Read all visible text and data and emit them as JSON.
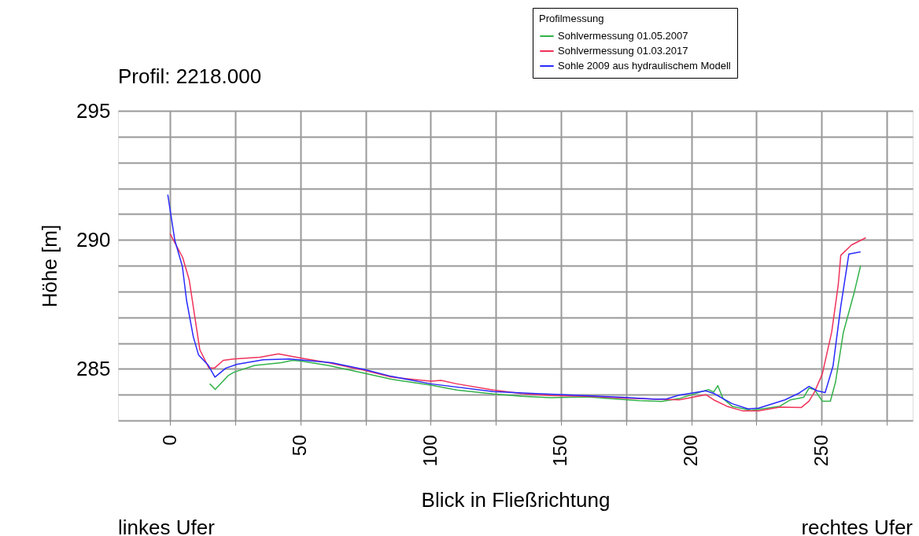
{
  "chart_data": {
    "type": "line",
    "title": "Profil:    2218.000",
    "xlabel": "Blick in Fließrichtung",
    "ylabel": "Höhe [m]",
    "legend_title": "Profilmessung",
    "legend": "top right",
    "grid": true,
    "line_style": "solid",
    "marker": "none",
    "annotations": [
      "linkes Ufer",
      "rechtes Ufer"
    ],
    "xlim": [
      -20,
      285
    ],
    "ylim": [
      283,
      295
    ],
    "xticks": [
      0,
      {
        "value": 25,
        "label": null
      },
      50,
      {
        "value": 75,
        "label": null
      },
      100,
      {
        "value": 125,
        "label": null
      },
      150,
      {
        "value": 175,
        "label": null
      },
      200,
      {
        "value": 225,
        "label": null
      },
      250,
      {
        "value": 275,
        "label": null
      }
    ],
    "yticks": [
      {
        "value": 283,
        "label": null
      },
      {
        "value": 284,
        "label": null
      },
      285,
      {
        "value": 286,
        "label": null
      },
      {
        "value": 287,
        "label": null
      },
      {
        "value": 288,
        "label": null
      },
      {
        "value": 289,
        "label": null
      },
      290,
      {
        "value": 291,
        "label": null
      },
      {
        "value": 292,
        "label": null
      },
      {
        "value": 293,
        "label": null
      },
      {
        "value": 294,
        "label": null
      },
      295
    ],
    "series": [
      {
        "name": "Sohlvermessung 01.05.2007",
        "color": "#33b24a",
        "x": [
          15.2,
          17.3,
          22.4,
          24.5,
          32.4,
          42.6,
          47,
          50.5,
          60.7,
          74.7,
          84.9,
          89.8,
          100,
          110,
          124,
          135,
          146,
          160,
          180,
          188.6,
          195.4,
          206.6,
          208.6,
          210.2,
          212.2,
          215.7,
          222.9,
          234,
          238.1,
          243.2,
          245.2,
          247.3,
          250.3,
          253.4,
          255.4,
          258.4,
          262.5,
          265
        ],
        "values": [
          284.42,
          284.2,
          284.75,
          284.87,
          285.13,
          285.24,
          285.33,
          285.3,
          285.13,
          284.83,
          284.6,
          284.52,
          284.37,
          284.18,
          284.03,
          283.94,
          283.88,
          283.91,
          283.77,
          283.74,
          283.85,
          284.2,
          284.1,
          284.35,
          283.85,
          283.55,
          283.39,
          283.55,
          283.8,
          283.9,
          284.25,
          284.2,
          283.75,
          283.75,
          284.5,
          286.42,
          287.94,
          289.0
        ]
      },
      {
        "name": "Sohlvermessung 01.03.2017",
        "color": "#f0325a",
        "x": [
          0,
          4.8,
          7.3,
          9.4,
          11.4,
          14.9,
          17,
          20.4,
          24.5,
          34.5,
          41.6,
          49.6,
          60.7,
          74.7,
          84.9,
          100,
          104,
          110,
          124,
          135,
          146,
          160,
          173.5,
          188.6,
          195.4,
          205.6,
          208.6,
          213.7,
          219.8,
          225.9,
          234,
          242.2,
          245.2,
          247.3,
          250.3,
          253.9,
          256.4,
          257.4,
          261.5,
          267
        ],
        "values": [
          290.23,
          289.32,
          288.46,
          287.06,
          285.74,
          285.03,
          285.03,
          285.33,
          285.38,
          285.45,
          285.58,
          285.43,
          285.24,
          284.94,
          284.68,
          284.52,
          284.55,
          284.42,
          284.18,
          284.04,
          283.97,
          283.94,
          283.87,
          283.82,
          283.8,
          284.0,
          283.8,
          283.55,
          283.37,
          283.37,
          283.52,
          283.5,
          283.75,
          284.1,
          284.8,
          286.42,
          288.24,
          289.4,
          289.8,
          290.08
        ]
      },
      {
        "name": "Sohle 2009 aus hydraulischem Modell",
        "color": "#2a2aff",
        "x": [
          -0.9,
          1.8,
          4.7,
          6.3,
          8.9,
          10.9,
          14.7,
          17.2,
          21.4,
          25.7,
          35.8,
          45.8,
          51.9,
          62,
          74.7,
          84.9,
          100,
          124,
          140.3,
          160,
          173.5,
          186.6,
          190.6,
          195.4,
          205.6,
          208.6,
          215.7,
          221.8,
          225.9,
          236,
          241.2,
          245.2,
          248.3,
          251.4,
          254.4,
          257.4,
          260.5,
          265
        ],
        "values": [
          291.75,
          289.98,
          288.97,
          287.66,
          286.24,
          285.54,
          285.13,
          284.68,
          285.03,
          285.18,
          285.35,
          285.38,
          285.33,
          285.24,
          284.97,
          284.71,
          284.42,
          284.12,
          284.04,
          283.96,
          283.9,
          283.82,
          283.84,
          283.98,
          284.15,
          284.05,
          283.65,
          283.45,
          283.48,
          283.8,
          284.05,
          284.32,
          284.15,
          284.08,
          285.1,
          287.43,
          289.45,
          289.53
        ]
      }
    ]
  }
}
